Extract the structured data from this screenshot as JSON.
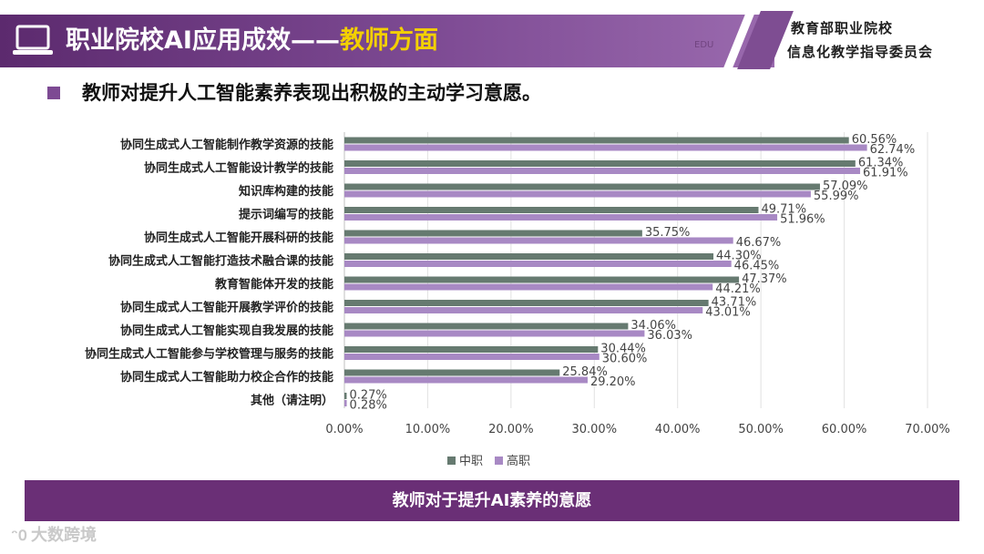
{
  "header": {
    "title_main": "职业院校AI应用成效——",
    "title_highlight": "教师方面",
    "org_line1": "教育部职业院校",
    "org_line2": "信息化教学指导委员会",
    "small_mark": "EDU"
  },
  "headline": "教师对提升人工智能素养表现出积极的主动学习意愿。",
  "caption": "教师对于提升AI素养的意愿",
  "watermark": "大数跨境",
  "colors": {
    "purple_dark": "#6a2f76",
    "accent_yellow": "#f3d000",
    "series_zhongzhi": "#667a70",
    "series_gaozhi": "#a889c4"
  },
  "chart_data": {
    "type": "bar",
    "orientation": "horizontal",
    "title": "",
    "xlabel": "",
    "ylabel": "",
    "xlim": [
      0,
      70
    ],
    "x_ticks": [
      "0.00%",
      "10.00%",
      "20.00%",
      "30.00%",
      "40.00%",
      "50.00%",
      "60.00%",
      "70.00%"
    ],
    "legend_position": "bottom",
    "categories": [
      "协同生成式人工智能制作教学资源的技能",
      "协同生成式人工智能设计教学的技能",
      "知识库构建的技能",
      "提示词编写的技能",
      "协同生成式人工智能开展科研的技能",
      "协同生成式人工智能打造技术融合课的技能",
      "教育智能体开发的技能",
      "协同生成式人工智能开展教学评价的技能",
      "协同生成式人工智能实现自我发展的技能",
      "协同生成式人工智能参与学校管理与服务的技能",
      "协同生成式人工智能助力校企合作的技能",
      "其他（请注明）"
    ],
    "series": [
      {
        "name": "中职",
        "values": [
          60.56,
          61.34,
          57.09,
          49.71,
          35.75,
          44.3,
          47.37,
          43.71,
          34.06,
          30.44,
          25.84,
          0.27
        ],
        "labels": [
          "60.56%",
          "61.34%",
          "57.09%",
          "49.71%",
          "35.75%",
          "44.30%",
          "47.37%",
          "43.71%",
          "34.06%",
          "30.44%",
          "25.84%",
          "0.27%"
        ]
      },
      {
        "name": "高职",
        "values": [
          62.74,
          61.91,
          55.99,
          51.96,
          46.67,
          46.45,
          44.21,
          43.01,
          36.03,
          30.6,
          29.2,
          0.28
        ],
        "labels": [
          "62.74%",
          "61.91%",
          "55.99%",
          "51.96%",
          "46.67%",
          "46.45%",
          "44.21%",
          "43.01%",
          "36.03%",
          "30.60%",
          "29.20%",
          "0.28%"
        ]
      }
    ]
  }
}
